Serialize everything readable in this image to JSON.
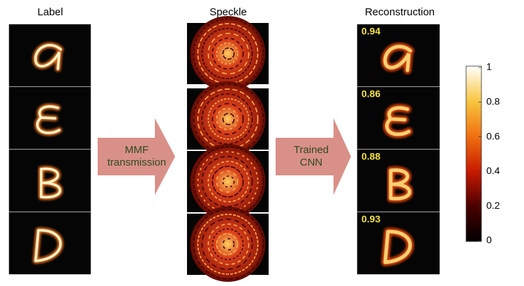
{
  "columns": {
    "label": "Label",
    "speckle": "Speckle",
    "reconstruction": "Reconstruction"
  },
  "arrows": [
    {
      "lines": [
        "MMF",
        "transmission"
      ]
    },
    {
      "lines": [
        "Trained",
        "CNN"
      ]
    }
  ],
  "scores": [
    0.94,
    0.86,
    0.88,
    0.93
  ],
  "colorbar": {
    "range": [
      0,
      1
    ],
    "ticks": [
      0,
      0.2,
      0.4,
      0.6,
      0.8,
      1
    ]
  }
}
